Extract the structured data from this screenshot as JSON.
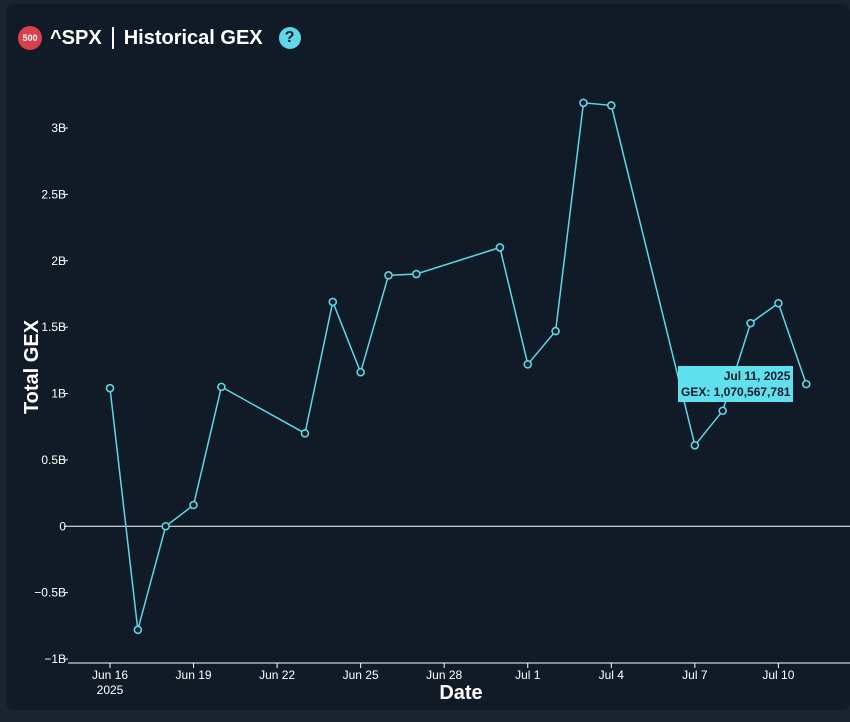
{
  "header": {
    "badge": "500",
    "ticker": "^SPX",
    "title": "Historical GEX",
    "help_icon": "?"
  },
  "colors": {
    "line": "#5fd7e6",
    "zero_line": "#ffffff",
    "badge": "#d93f4c",
    "background": "#111b28"
  },
  "chart_data": {
    "type": "line",
    "title": "^SPX | Historical GEX",
    "xlabel": "Date",
    "ylabel": "Total GEX",
    "ylim": [
      -1000000000,
      3300000000
    ],
    "yticks": [
      {
        "value": 3000000000,
        "label": "3B"
      },
      {
        "value": 2500000000,
        "label": "2.5B"
      },
      {
        "value": 2000000000,
        "label": "2B"
      },
      {
        "value": 1500000000,
        "label": "1.5B"
      },
      {
        "value": 1000000000,
        "label": "1B"
      },
      {
        "value": 500000000,
        "label": "0.5B"
      },
      {
        "value": 0,
        "label": "0"
      },
      {
        "value": -500000000,
        "label": "−0.5B"
      },
      {
        "value": -1000000000,
        "label": "−1B"
      }
    ],
    "xticks": [
      {
        "date": "2025-06-16",
        "label": "Jun 16",
        "sublabel": "2025"
      },
      {
        "date": "2025-06-19",
        "label": "Jun 19"
      },
      {
        "date": "2025-06-22",
        "label": "Jun 22"
      },
      {
        "date": "2025-06-25",
        "label": "Jun 25"
      },
      {
        "date": "2025-06-28",
        "label": "Jun 28"
      },
      {
        "date": "2025-07-01",
        "label": "Jul 1"
      },
      {
        "date": "2025-07-04",
        "label": "Jul 4"
      },
      {
        "date": "2025-07-07",
        "label": "Jul 7"
      },
      {
        "date": "2025-07-10",
        "label": "Jul 10"
      }
    ],
    "zero_line": true,
    "grid": false,
    "series": [
      {
        "points": [
          {
            "x": "2025-06-16",
            "y": 1040000000
          },
          {
            "x": "2025-06-17",
            "y": -780000000
          },
          {
            "x": "2025-06-18",
            "y": 0
          },
          {
            "x": "2025-06-19",
            "y": 160000000
          },
          {
            "x": "2025-06-20",
            "y": 1050000000
          },
          {
            "x": "2025-06-23",
            "y": 700000000
          },
          {
            "x": "2025-06-24",
            "y": 1690000000
          },
          {
            "x": "2025-06-25",
            "y": 1160000000
          },
          {
            "x": "2025-06-26",
            "y": 1890000000
          },
          {
            "x": "2025-06-27",
            "y": 1900000000
          },
          {
            "x": "2025-06-30",
            "y": 2100000000
          },
          {
            "x": "2025-07-01",
            "y": 1220000000
          },
          {
            "x": "2025-07-02",
            "y": 1470000000
          },
          {
            "x": "2025-07-03",
            "y": 3190000000
          },
          {
            "x": "2025-07-04",
            "y": 3170000000
          },
          {
            "x": "2025-07-07",
            "y": 610000000
          },
          {
            "x": "2025-07-08",
            "y": 870000000
          },
          {
            "x": "2025-07-09",
            "y": 1530000000
          },
          {
            "x": "2025-07-10",
            "y": 1680000000
          },
          {
            "x": "2025-07-11",
            "y": 1070567781
          }
        ]
      }
    ],
    "tooltip": {
      "date_label": "Jul 11, 2025",
      "value_label": "GEX: 1,070,567,781"
    }
  }
}
